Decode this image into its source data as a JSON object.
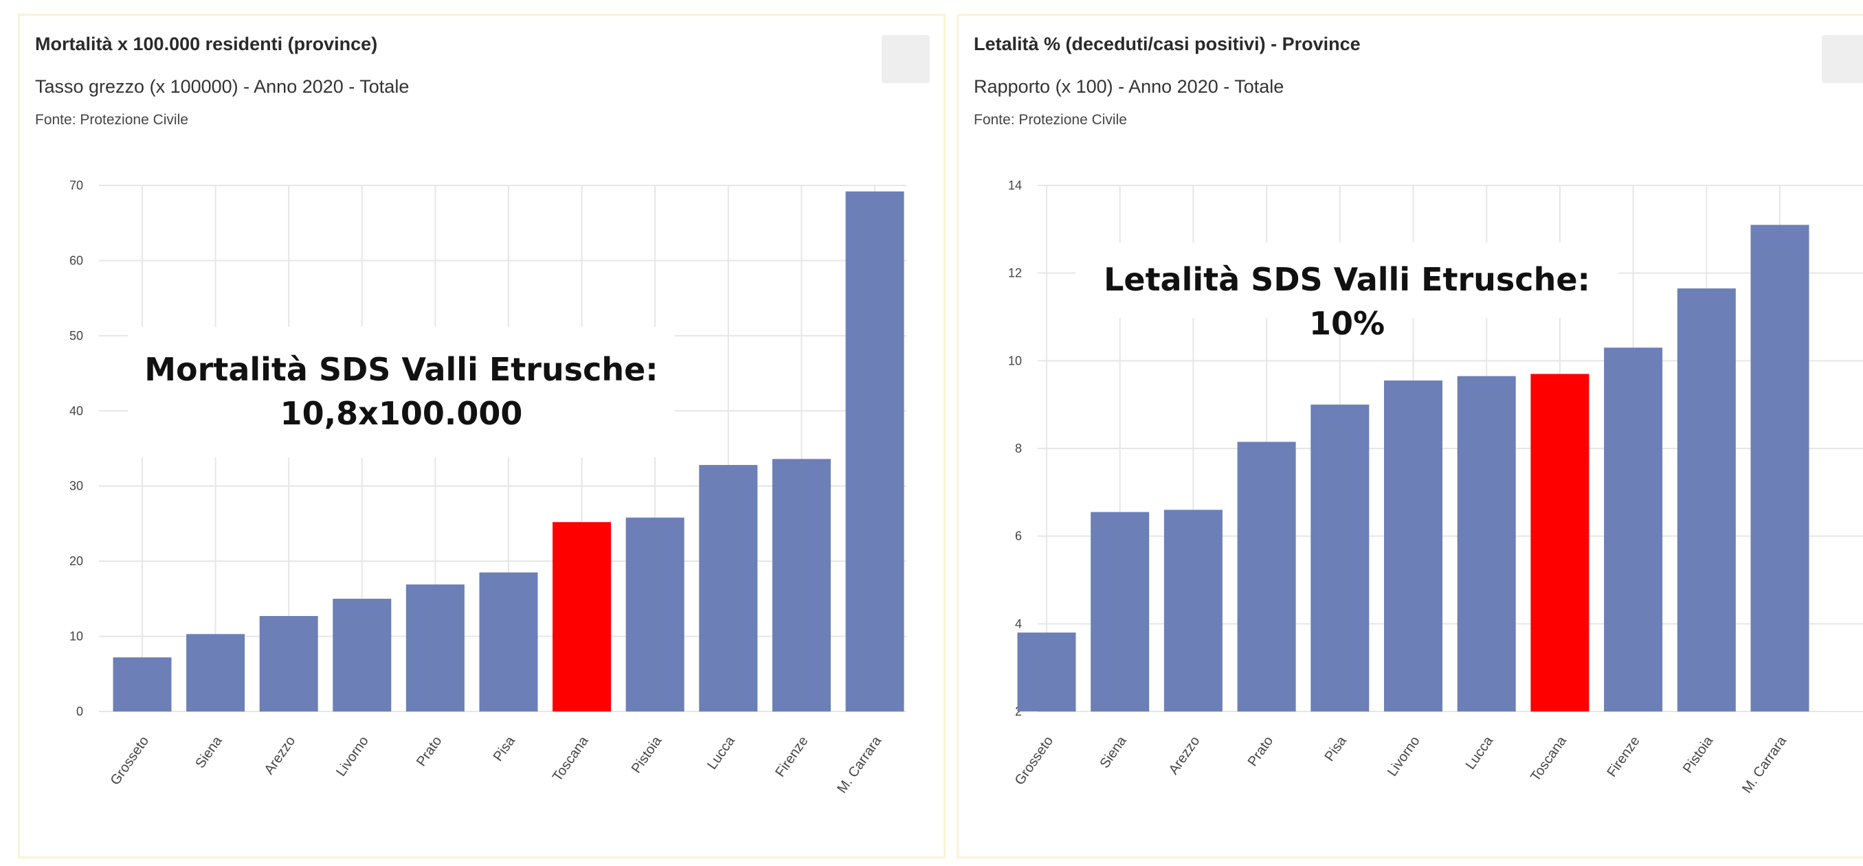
{
  "charts": [
    {
      "title": "Mortalità x 100.000 residenti (province)",
      "subtitle": "Tasso grezzo (x 100000) - Anno 2020 - Totale",
      "source": "Fonte: Protezione Civile",
      "annotation_line1": "Mortalità SDS Valli Etrusche:",
      "annotation_line2": "10,8x100.000"
    },
    {
      "title": "Letalità % (deceduti/casi positivi) - Province",
      "subtitle": "Rapporto (x 100) - Anno 2020 - Totale",
      "source": "Fonte: Protezione Civile",
      "annotation_line1": "Letalità SDS Valli Etrusche: 10%"
    }
  ],
  "colors": {
    "bar": "#6c7fb6",
    "highlight": "#ff0000",
    "grid": "#e6e6e6"
  },
  "chart_data": [
    {
      "type": "bar",
      "title": "Mortalità x 100.000 residenti (province)",
      "subtitle": "Tasso grezzo (x 100000) - Anno 2020 - Totale",
      "categories": [
        "Grosseto",
        "Siena",
        "Arezzo",
        "Livorno",
        "Prato",
        "Pisa",
        "Toscana",
        "Pistoia",
        "Lucca",
        "Firenze",
        "M. Carrara"
      ],
      "values": [
        7.2,
        10.3,
        12.7,
        15.0,
        16.9,
        18.5,
        25.2,
        25.8,
        32.8,
        33.6,
        69.2
      ],
      "highlight": "Toscana",
      "ylim": [
        0,
        70
      ],
      "yticks": [
        0,
        10,
        20,
        30,
        40,
        50,
        60,
        70
      ],
      "grid": true
    },
    {
      "type": "bar",
      "title": "Letalità % (deceduti/casi positivi) - Province",
      "subtitle": "Rapporto (x 100) - Anno 2020 - Totale",
      "categories": [
        "Grosseto",
        "Siena",
        "Arezzo",
        "Prato",
        "Pisa",
        "Livorno",
        "Lucca",
        "Toscana",
        "Firenze",
        "Pistoia",
        "M. Carrara"
      ],
      "values": [
        3.8,
        6.55,
        6.6,
        8.15,
        9.0,
        9.55,
        9.65,
        9.7,
        10.3,
        11.65,
        13.1
      ],
      "highlight": "Toscana",
      "ylim": [
        2,
        14
      ],
      "yticks": [
        2,
        4,
        6,
        8,
        10,
        12,
        14
      ],
      "grid": true
    }
  ]
}
